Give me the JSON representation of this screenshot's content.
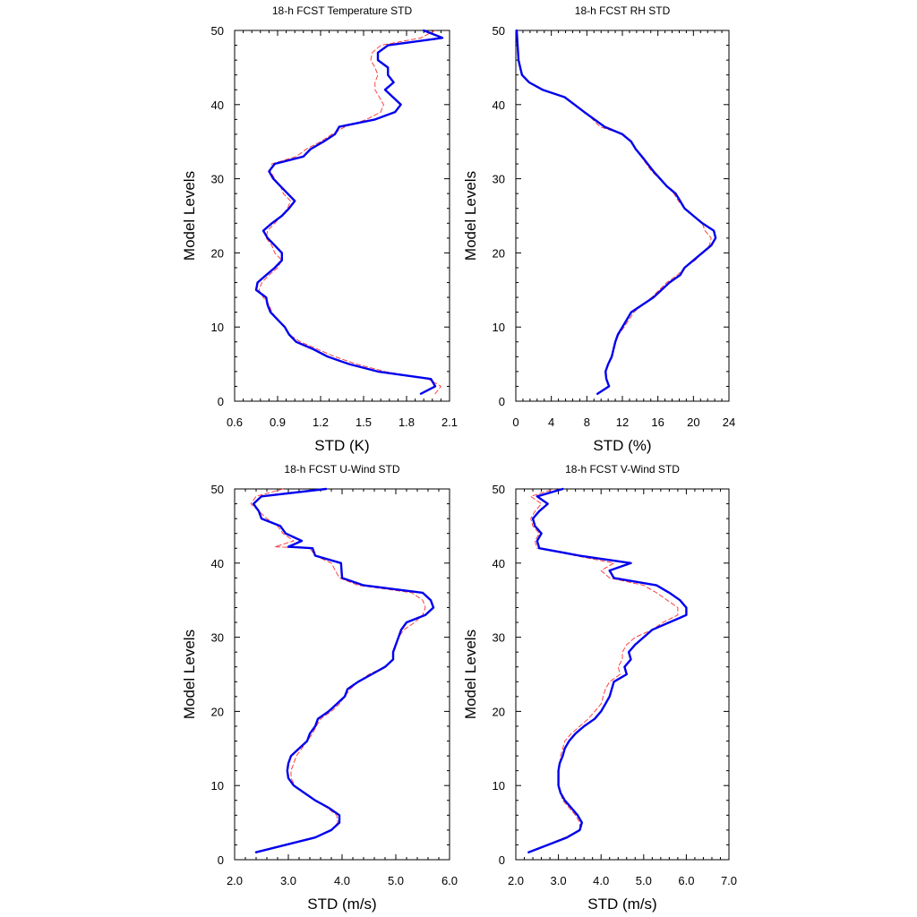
{
  "chart_data": [
    {
      "type": "line",
      "title": "18-h FCST Temperature STD",
      "xlabel": "STD (K)",
      "ylabel": "Model Levels",
      "xlim": [
        0.6,
        2.1
      ],
      "ylim": [
        0,
        50
      ],
      "xticks": [
        "0.6",
        "0.9",
        "1.2",
        "1.5",
        "1.8",
        "2.1"
      ],
      "yticks": [
        "0",
        "10",
        "20",
        "30",
        "40",
        "50"
      ],
      "grid": false,
      "legend": false,
      "series": [
        {
          "style": "solid-thick",
          "color": "#0000ee",
          "x": [
            1.9,
            2.0,
            1.97,
            1.6,
            1.4,
            1.25,
            1.15,
            1.03,
            0.98,
            0.95,
            0.9,
            0.85,
            0.83,
            0.82,
            0.75,
            0.76,
            0.82,
            0.88,
            0.93,
            0.93,
            0.88,
            0.83,
            0.8,
            0.86,
            0.93,
            0.98,
            1.02,
            0.97,
            0.92,
            0.87,
            0.84,
            0.88,
            1.08,
            1.13,
            1.22,
            1.3,
            1.33,
            1.58,
            1.72,
            1.76,
            1.65,
            1.71,
            1.67,
            1.67,
            1.6,
            1.6,
            1.67,
            2.05,
            1.92
          ],
          "y": [
            1,
            2,
            3,
            4,
            5,
            6,
            7,
            8,
            9,
            10,
            11,
            12,
            13,
            14,
            15,
            16,
            17,
            18,
            19,
            20,
            21,
            22,
            23,
            24,
            25,
            26,
            27,
            28,
            29,
            30,
            31,
            32,
            33,
            34,
            35,
            36,
            37,
            38,
            39,
            40,
            42,
            43,
            44,
            45,
            46,
            47,
            48,
            49,
            50
          ]
        },
        {
          "style": "dashed-thin",
          "color": "#ff3030",
          "x": [
            2.0,
            2.04,
            1.95,
            1.65,
            1.45,
            1.3,
            1.18,
            1.06,
            0.98,
            0.95,
            0.9,
            0.86,
            0.84,
            0.8,
            0.77,
            0.79,
            0.84,
            0.9,
            0.93,
            0.88,
            0.86,
            0.82,
            0.83,
            0.88,
            0.93,
            0.97,
            0.99,
            0.94,
            0.92,
            0.88,
            0.85,
            0.86,
            1.03,
            1.1,
            1.2,
            1.28,
            1.37,
            1.52,
            1.62,
            1.64,
            1.58,
            1.58,
            1.6,
            1.58,
            1.55,
            1.56,
            1.62,
            1.9,
            2.0
          ],
          "y": [
            1,
            2,
            3,
            4,
            5,
            6,
            7,
            8,
            9,
            10,
            11,
            12,
            13,
            14,
            15,
            16,
            17,
            18,
            19,
            20,
            21,
            22,
            23,
            24,
            25,
            26,
            27,
            28,
            29,
            30,
            31,
            32,
            33,
            34,
            35,
            36,
            37,
            38,
            39,
            40,
            42,
            43,
            44,
            45,
            46,
            47,
            48,
            49,
            50
          ]
        }
      ]
    },
    {
      "type": "line",
      "title": "18-h FCST RH STD",
      "xlabel": "STD (%)",
      "ylabel": "Model Levels",
      "xlim": [
        0,
        24
      ],
      "ylim": [
        0,
        50
      ],
      "xticks": [
        "0",
        "4",
        "8",
        "12",
        "16",
        "20",
        "24"
      ],
      "yticks": [
        "0",
        "10",
        "20",
        "30",
        "40",
        "50"
      ],
      "grid": false,
      "legend": false,
      "series": [
        {
          "style": "solid-thick",
          "color": "#0000ee",
          "x": [
            9.2,
            10.5,
            10.2,
            10.1,
            10.4,
            10.8,
            11.0,
            11.2,
            11.5,
            12.0,
            13.0,
            15.5,
            17.3,
            18.5,
            19.0,
            20.0,
            22.0,
            22.5,
            22.3,
            21.0,
            20.0,
            19.0,
            18.5,
            18.0,
            17.0,
            15.5,
            14.2,
            13.5,
            13.0,
            12.0,
            10.0,
            7.7,
            5.5,
            3.0,
            1.5,
            0.7,
            0.3,
            0.1
          ],
          "y": [
            1,
            2,
            3,
            4,
            5,
            6,
            7,
            8,
            9,
            10,
            12,
            14,
            16,
            17,
            18,
            19,
            21,
            22,
            23,
            24,
            25,
            26,
            27,
            28,
            29,
            31,
            33,
            34,
            35,
            36,
            37,
            39,
            41,
            42,
            43,
            44,
            46,
            50
          ]
        },
        {
          "style": "dashed-thin",
          "color": "#ff3030",
          "x": [
            9.3,
            10.4,
            10.2,
            10.1,
            10.4,
            10.8,
            11.0,
            11.2,
            11.6,
            12.2,
            13.3,
            15.3,
            17.0,
            18.2,
            19.0,
            20.2,
            21.8,
            22.0,
            21.3,
            21.0,
            20.0,
            19.0,
            18.3,
            17.8,
            17.0,
            15.3,
            14.1,
            13.5,
            13.0,
            12.0,
            9.5,
            7.8,
            5.5,
            3.0,
            1.4,
            0.7,
            0.3,
            0.1
          ],
          "y": [
            1,
            2,
            3,
            4,
            5,
            6,
            7,
            8,
            9,
            10,
            12,
            14,
            16,
            17,
            18,
            19,
            21,
            22,
            23,
            24,
            25,
            26,
            27,
            28,
            29,
            31,
            33,
            34,
            35,
            36,
            37,
            39,
            41,
            42,
            43,
            44,
            46,
            50
          ]
        }
      ]
    },
    {
      "type": "line",
      "title": "18-h FCST U-Wind STD",
      "xlabel": "STD (m/s)",
      "ylabel": "Model Levels",
      "xlim": [
        2.0,
        6.0
      ],
      "ylim": [
        0,
        50
      ],
      "xticks": [
        "2.0",
        "3.0",
        "4.0",
        "5.0",
        "6.0"
      ],
      "yticks": [
        "0",
        "10",
        "20",
        "30",
        "40",
        "50"
      ],
      "grid": false,
      "legend": false,
      "series": [
        {
          "style": "solid-thick",
          "color": "#0000ee",
          "x": [
            2.4,
            3.5,
            3.8,
            3.95,
            3.95,
            3.75,
            3.5,
            3.3,
            3.1,
            3.0,
            2.98,
            3.0,
            3.05,
            3.2,
            3.35,
            3.4,
            3.5,
            3.55,
            3.75,
            3.9,
            4.05,
            4.1,
            4.3,
            4.55,
            4.8,
            4.95,
            4.95,
            5.0,
            5.05,
            5.1,
            5.2,
            5.55,
            5.7,
            5.65,
            5.5,
            4.4,
            4.0,
            3.98,
            3.5,
            3.45,
            3.0,
            3.25,
            2.95,
            2.85,
            2.5,
            2.45,
            2.35,
            2.5,
            3.7
          ],
          "y": [
            1,
            3,
            4,
            5,
            6,
            7,
            8,
            9,
            10,
            11,
            12,
            13,
            14,
            15,
            16,
            17,
            18,
            19,
            20,
            21,
            22,
            23,
            24,
            25,
            26,
            27,
            28,
            29,
            30,
            31,
            32,
            33,
            34,
            35,
            36,
            37,
            38,
            40,
            41,
            42,
            42.2,
            43,
            44,
            45,
            46,
            47,
            48,
            49,
            50
          ]
        },
        {
          "style": "dashed-thin",
          "color": "#ff3030",
          "x": [
            2.4,
            3.5,
            3.8,
            3.92,
            3.9,
            3.72,
            3.5,
            3.3,
            3.12,
            3.05,
            3.05,
            3.1,
            3.15,
            3.25,
            3.35,
            3.45,
            3.52,
            3.6,
            3.8,
            3.95,
            4.05,
            4.15,
            4.3,
            4.5,
            4.8,
            4.95,
            4.95,
            5.0,
            5.05,
            5.15,
            5.35,
            5.5,
            5.55,
            5.5,
            5.3,
            4.3,
            3.95,
            3.8,
            3.5,
            3.4,
            2.75,
            3.1,
            2.9,
            2.8,
            2.6,
            2.45,
            2.3,
            2.4,
            2.9
          ],
          "y": [
            1,
            3,
            4,
            5,
            6,
            7,
            8,
            9,
            10,
            11,
            12,
            13,
            14,
            15,
            16,
            17,
            18,
            19,
            20,
            21,
            22,
            23,
            24,
            25,
            26,
            27,
            28,
            29,
            30,
            31,
            32,
            33,
            34,
            35,
            36,
            37,
            38,
            40,
            41,
            42,
            42.2,
            43,
            44,
            45,
            46,
            47,
            48,
            49,
            50
          ]
        }
      ]
    },
    {
      "type": "line",
      "title": "18-h FCST V-Wind STD",
      "xlabel": "STD (m/s)",
      "ylabel": "Model Levels",
      "xlim": [
        2.0,
        7.0
      ],
      "ylim": [
        0,
        50
      ],
      "xticks": [
        "2.0",
        "3.0",
        "4.0",
        "5.0",
        "6.0",
        "7.0"
      ],
      "yticks": [
        "0",
        "10",
        "20",
        "30",
        "40",
        "50"
      ],
      "grid": false,
      "legend": false,
      "series": [
        {
          "style": "solid-thick",
          "color": "#0000ee",
          "x": [
            2.3,
            3.2,
            3.5,
            3.55,
            3.45,
            3.3,
            3.15,
            3.05,
            3.0,
            3.0,
            3.0,
            3.03,
            3.1,
            3.15,
            3.25,
            3.4,
            3.6,
            3.85,
            4.0,
            4.1,
            4.2,
            4.25,
            4.3,
            4.6,
            4.55,
            4.7,
            4.65,
            4.8,
            5.0,
            5.2,
            5.6,
            6.0,
            6.0,
            5.85,
            5.6,
            5.3,
            4.3,
            4.2,
            4.7,
            3.5,
            2.55,
            2.5,
            2.6,
            2.45,
            2.4,
            2.55,
            2.75,
            2.5,
            3.1
          ],
          "y": [
            1,
            3,
            4,
            5,
            6,
            7,
            8,
            9,
            10,
            11,
            12,
            13,
            14,
            15,
            16,
            17,
            18,
            19,
            20,
            21,
            22,
            23,
            24,
            25,
            26,
            27,
            28,
            29,
            30,
            31,
            32,
            33,
            34,
            35,
            36,
            37,
            38,
            39,
            40,
            41,
            42,
            43,
            44,
            45,
            46,
            47,
            48,
            49,
            50
          ]
        },
        {
          "style": "dashed-thin",
          "color": "#ff3030",
          "x": [
            2.3,
            3.15,
            3.5,
            3.5,
            3.4,
            3.25,
            3.1,
            3.05,
            3.0,
            3.0,
            3.0,
            3.03,
            3.05,
            3.1,
            3.15,
            3.3,
            3.5,
            3.7,
            3.85,
            4.0,
            4.05,
            4.1,
            4.2,
            4.45,
            4.4,
            4.5,
            4.5,
            4.6,
            4.8,
            5.2,
            5.45,
            5.8,
            5.8,
            5.55,
            5.3,
            5.0,
            4.2,
            4.0,
            4.3,
            3.4,
            2.5,
            2.45,
            2.55,
            2.4,
            2.35,
            2.45,
            2.6,
            2.35,
            2.9
          ],
          "y": [
            1,
            3,
            4,
            5,
            6,
            7,
            8,
            9,
            10,
            11,
            12,
            13,
            14,
            15,
            16,
            17,
            18,
            19,
            20,
            21,
            22,
            23,
            24,
            25,
            26,
            27,
            28,
            29,
            30,
            31,
            32,
            33,
            34,
            35,
            36,
            37,
            38,
            39,
            40,
            41,
            42,
            43,
            44,
            45,
            46,
            47,
            48,
            49,
            50
          ]
        }
      ]
    }
  ]
}
